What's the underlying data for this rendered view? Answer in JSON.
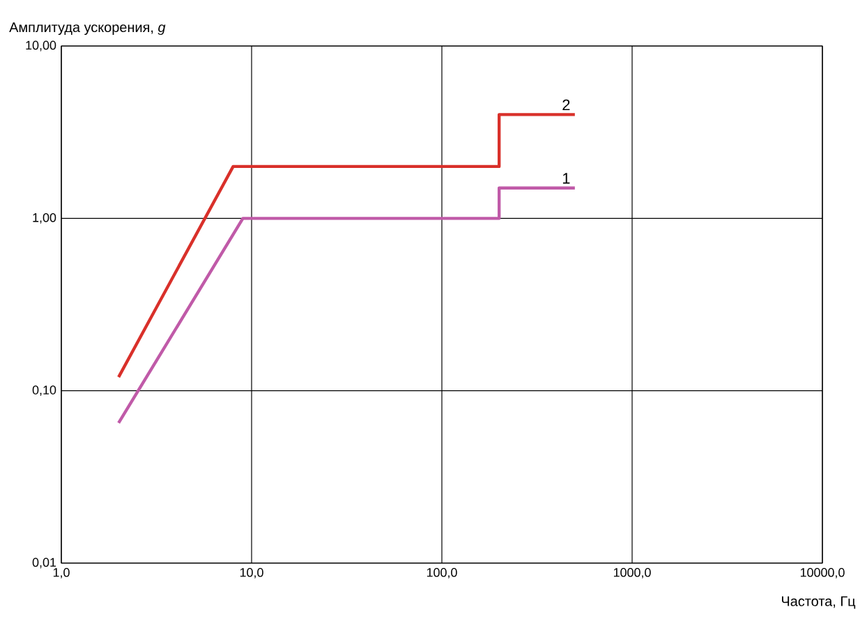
{
  "chart_data": {
    "type": "line",
    "ylabel": "Амплитуда ускорения, *g*",
    "xlabel": "Частота, Гц",
    "log": "xy",
    "grid": true,
    "legend": false,
    "xlim": [
      1,
      10000
    ],
    "ylim": [
      0.01,
      10
    ],
    "xticks": [
      {
        "value": 1,
        "label": "1,0"
      },
      {
        "value": 10,
        "label": "10,0"
      },
      {
        "value": 100,
        "label": "100,0"
      },
      {
        "value": 1000,
        "label": "1000,0"
      },
      {
        "value": 10000,
        "label": "10000,0"
      }
    ],
    "yticks": [
      {
        "value": 0.01,
        "label": "0,01"
      },
      {
        "value": 0.1,
        "label": "0,10"
      },
      {
        "value": 1,
        "label": "1,00"
      },
      {
        "value": 10,
        "label": "10,00"
      }
    ],
    "series": [
      {
        "name": "2",
        "color": "#d9302a",
        "x": [
          2,
          8,
          200,
          200,
          500
        ],
        "values": [
          0.12,
          2,
          2,
          4,
          4
        ]
      },
      {
        "name": "1",
        "color": "#c05aa8",
        "x": [
          2,
          9,
          200,
          200,
          500
        ],
        "values": [
          0.065,
          1,
          1,
          1.5,
          1.5
        ]
      }
    ]
  }
}
